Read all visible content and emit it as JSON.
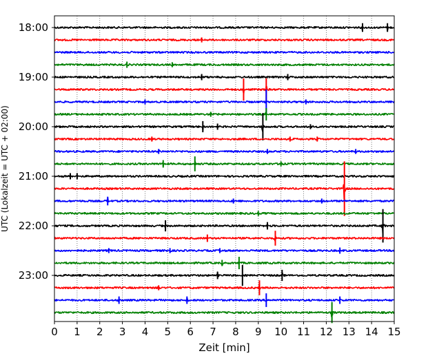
{
  "chart_data": {
    "type": "line",
    "title": "",
    "xlabel": "Zeit  [min]",
    "ylabel": "UTC (Lokalzeit = UTC + 02:00)",
    "xlim": [
      0,
      15
    ],
    "x_ticks": [
      0,
      1,
      2,
      3,
      4,
      5,
      6,
      7,
      8,
      9,
      10,
      11,
      12,
      13,
      14,
      15
    ],
    "x_tick_labels": [
      "0",
      "1",
      "2",
      "3",
      "4",
      "5",
      "6",
      "7",
      "8",
      "9",
      "10",
      "11",
      "12",
      "13",
      "14",
      "15"
    ],
    "y_tick_labels": [
      "18:00",
      "19:00",
      "20:00",
      "21:00",
      "22:00",
      "23:00"
    ],
    "y_tick_trace_index": [
      0,
      4,
      8,
      12,
      16,
      20
    ],
    "grid": "vertical dotted",
    "trace_interval_min": 15,
    "trace_colors": [
      "#000000",
      "#ff0000",
      "#0000ff",
      "#008000"
    ],
    "series": [
      {
        "start": "18:00",
        "color": "#000000",
        "events": [
          {
            "t": 13.6,
            "amp": 0.35
          },
          {
            "t": 14.7,
            "amp": 0.35
          }
        ]
      },
      {
        "start": "18:15",
        "color": "#ff0000",
        "events": [
          {
            "t": 6.5,
            "amp": 0.2
          }
        ]
      },
      {
        "start": "18:30",
        "color": "#0000ff",
        "events": []
      },
      {
        "start": "18:45",
        "color": "#008000",
        "events": [
          {
            "t": 3.2,
            "amp": 0.25
          },
          {
            "t": 5.2,
            "amp": 0.2
          }
        ]
      },
      {
        "start": "19:00",
        "color": "#000000",
        "events": [
          {
            "t": 6.5,
            "amp": 0.25
          },
          {
            "t": 10.3,
            "amp": 0.25
          }
        ]
      },
      {
        "start": "19:15",
        "color": "#ff0000",
        "events": [
          {
            "t": 8.35,
            "amp": 0.9
          },
          {
            "t": 9.35,
            "amp": 0.9
          }
        ]
      },
      {
        "start": "19:30",
        "color": "#0000ff",
        "events": [
          {
            "t": 4.0,
            "amp": 0.2
          },
          {
            "t": 9.35,
            "amp": 1.0
          },
          {
            "t": 11.1,
            "amp": 0.2
          }
        ]
      },
      {
        "start": "19:45",
        "color": "#008000",
        "events": [
          {
            "t": 6.9,
            "amp": 0.2
          },
          {
            "t": 9.35,
            "amp": 0.5
          }
        ]
      },
      {
        "start": "20:00",
        "color": "#000000",
        "events": [
          {
            "t": 6.55,
            "amp": 0.45
          },
          {
            "t": 7.2,
            "amp": 0.25
          },
          {
            "t": 9.2,
            "amp": 1.1
          },
          {
            "t": 11.3,
            "amp": 0.2
          }
        ]
      },
      {
        "start": "20:15",
        "color": "#ff0000",
        "events": [
          {
            "t": 4.3,
            "amp": 0.2
          },
          {
            "t": 10.4,
            "amp": 0.2
          },
          {
            "t": 11.6,
            "amp": 0.2
          }
        ]
      },
      {
        "start": "20:30",
        "color": "#0000ff",
        "events": [
          {
            "t": 4.6,
            "amp": 0.2
          },
          {
            "t": 9.4,
            "amp": 0.2
          },
          {
            "t": 13.3,
            "amp": 0.2
          }
        ]
      },
      {
        "start": "20:45",
        "color": "#008000",
        "events": [
          {
            "t": 4.8,
            "amp": 0.3
          },
          {
            "t": 6.2,
            "amp": 0.6
          },
          {
            "t": 10.0,
            "amp": 0.2
          }
        ]
      },
      {
        "start": "21:00",
        "color": "#000000",
        "events": [
          {
            "t": 0.7,
            "amp": 0.25
          },
          {
            "t": 1.0,
            "amp": 0.25
          }
        ]
      },
      {
        "start": "21:15",
        "color": "#ff0000",
        "events": [
          {
            "t": 12.8,
            "amp": 2.2
          }
        ]
      },
      {
        "start": "21:30",
        "color": "#0000ff",
        "events": [
          {
            "t": 2.35,
            "amp": 0.35
          },
          {
            "t": 7.9,
            "amp": 0.2
          },
          {
            "t": 11.8,
            "amp": 0.2
          }
        ]
      },
      {
        "start": "21:45",
        "color": "#008000",
        "events": [
          {
            "t": 9.0,
            "amp": 0.2
          }
        ]
      },
      {
        "start": "22:00",
        "color": "#000000",
        "events": [
          {
            "t": 4.9,
            "amp": 0.45
          },
          {
            "t": 9.4,
            "amp": 0.3
          },
          {
            "t": 14.5,
            "amp": 1.35
          }
        ]
      },
      {
        "start": "22:15",
        "color": "#ff0000",
        "events": [
          {
            "t": 6.75,
            "amp": 0.3
          },
          {
            "t": 9.75,
            "amp": 0.6
          }
        ]
      },
      {
        "start": "22:30",
        "color": "#0000ff",
        "events": [
          {
            "t": 2.4,
            "amp": 0.2
          },
          {
            "t": 5.1,
            "amp": 0.2
          },
          {
            "t": 7.3,
            "amp": 0.2
          },
          {
            "t": 12.6,
            "amp": 0.25
          }
        ]
      },
      {
        "start": "22:45",
        "color": "#008000",
        "events": [
          {
            "t": 7.4,
            "amp": 0.25
          },
          {
            "t": 8.15,
            "amp": 0.5
          }
        ]
      },
      {
        "start": "23:00",
        "color": "#000000",
        "events": [
          {
            "t": 7.2,
            "amp": 0.3
          },
          {
            "t": 8.3,
            "amp": 0.85
          },
          {
            "t": 10.05,
            "amp": 0.45
          }
        ]
      },
      {
        "start": "23:15",
        "color": "#ff0000",
        "events": [
          {
            "t": 4.6,
            "amp": 0.2
          },
          {
            "t": 9.05,
            "amp": 0.6
          }
        ]
      },
      {
        "start": "23:30",
        "color": "#0000ff",
        "events": [
          {
            "t": 2.85,
            "amp": 0.3
          },
          {
            "t": 5.85,
            "amp": 0.3
          },
          {
            "t": 9.35,
            "amp": 0.55
          },
          {
            "t": 12.6,
            "amp": 0.3
          }
        ]
      },
      {
        "start": "23:45",
        "color": "#008000",
        "events": [
          {
            "t": 12.25,
            "amp": 0.85
          }
        ]
      }
    ]
  }
}
